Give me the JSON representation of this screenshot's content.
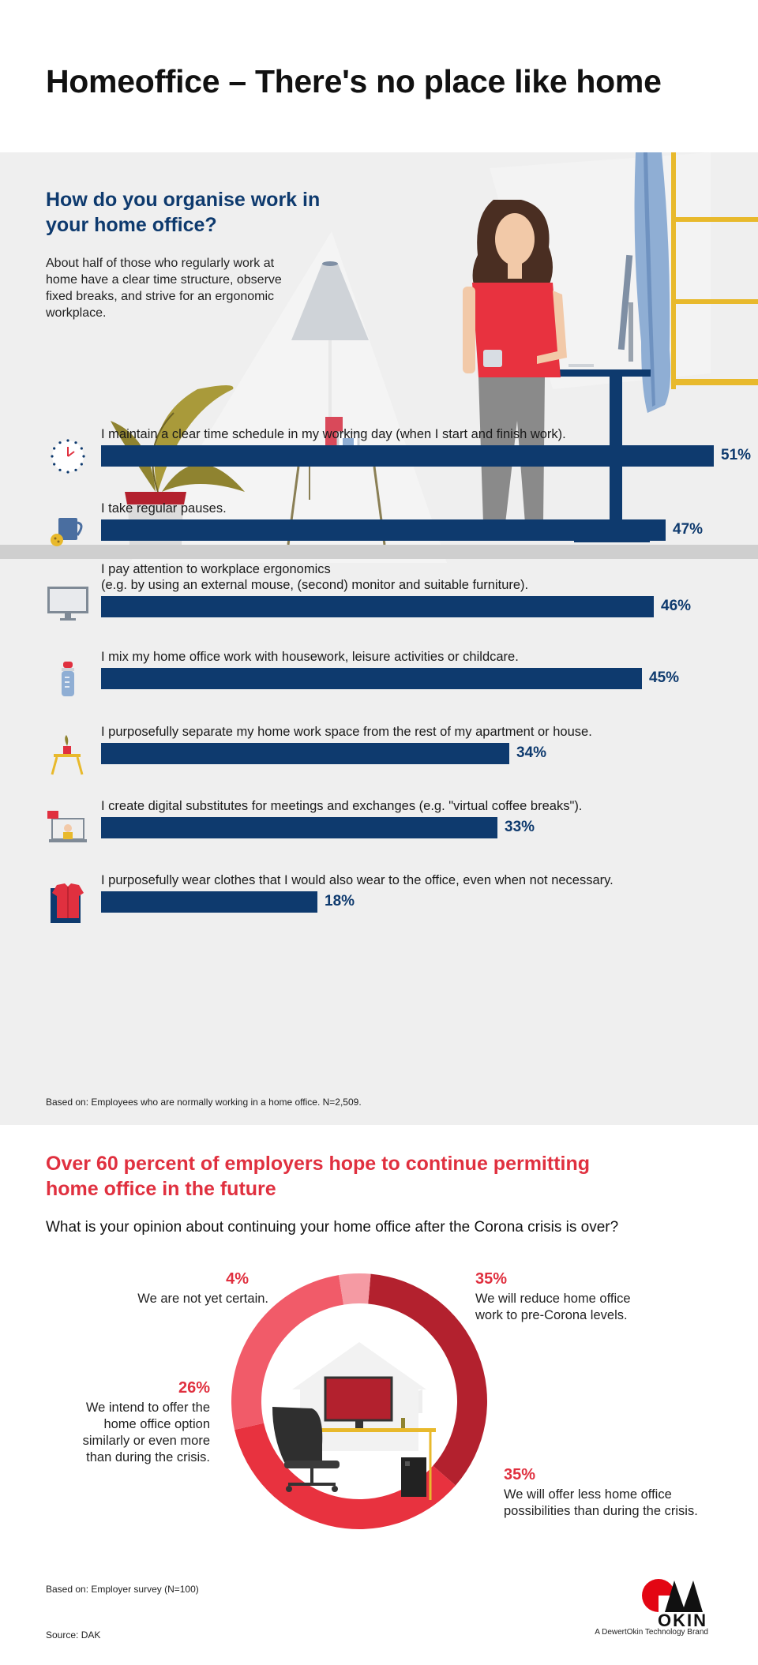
{
  "title": "Homeoffice – There's no place like home",
  "section1": {
    "heading": "How do you organise work in your home office?",
    "intro": "About half of those who regularly work at home have a clear time structure, observe fixed breaks, and strive for an ergonomic workplace.",
    "footnote": "Based on: Employees who are normally working in a home office. N=2,509."
  },
  "chart_data": [
    {
      "type": "bar",
      "orientation": "horizontal",
      "categories": [
        "I maintain a clear time schedule in my working day (when I start and finish work).",
        "I take regular pauses.",
        "I pay attention to workplace ergonomics\n(e.g. by using an external mouse, (second) monitor and suitable furniture).",
        "I mix my home office work with housework, leisure activities or childcare.",
        "I purposefully separate my home work space from the rest of my apartment or house.",
        "I create digital substitutes for meetings and exchanges (e.g. \"virtual coffee breaks\").",
        "I purposefully wear clothes that I would also wear to the office, even when not necessary."
      ],
      "values": [
        51,
        47,
        46,
        45,
        34,
        33,
        18
      ],
      "value_labels": [
        "51%",
        "47%",
        "46%",
        "45%",
        "34%",
        "33%",
        "18%"
      ],
      "icons": [
        "clock-icon",
        "cup-icon",
        "monitor-icon",
        "baby-bottle-icon",
        "plant-stool-icon",
        "laptop-video-icon",
        "shirt-icon"
      ],
      "bar_color": "#0e3a6e",
      "unit": "%"
    },
    {
      "type": "pie",
      "variant": "donut",
      "labels": [
        "We will reduce home office work to pre-Corona levels.",
        "We will offer less home office possibilities than during the crisis.",
        "We intend to offer the home office option similarly or even more than during the crisis.",
        "We are not yet certain."
      ],
      "values": [
        35,
        35,
        26,
        4
      ],
      "value_labels": [
        "35%",
        "35%",
        "26%",
        "4%"
      ],
      "colors": [
        "#b3212e",
        "#e8323f",
        "#f15b69",
        "#f59aa3"
      ]
    }
  ],
  "section2": {
    "heading": "Over 60 percent of employers hope to continue permitting home office in the future",
    "question": "What is your opinion about continuing your home office after the Corona crisis is over?",
    "footnote": "Based on: Employer survey (N=100)",
    "source": "Source: DAK"
  },
  "logo": {
    "word": "OKIN",
    "tagline": "A DewertOkin Technology Brand"
  },
  "colors": {
    "navy": "#0e3a6e",
    "red": "#e0303f",
    "gray_bg": "#efefef"
  }
}
